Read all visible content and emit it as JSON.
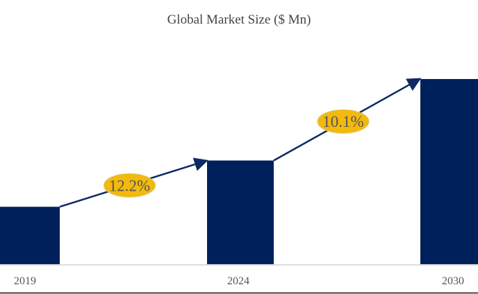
{
  "chart_data": {
    "type": "bar",
    "title": "Global Market Size ($ Mn)",
    "categories": [
      "2019",
      "2024",
      "2030"
    ],
    "values_relative_percent_of_max": [
      31,
      56,
      100
    ],
    "bar_color": "#00205b",
    "annotations": [
      {
        "from": "2019",
        "to": "2024",
        "label": "12.2%"
      },
      {
        "from": "2024",
        "to": "2030",
        "label": "10.1%"
      }
    ],
    "annotation_color": "#f2b90f",
    "arrow_color": "#0d2a63",
    "grid": false,
    "legend": "none",
    "y_axis_shown": false
  }
}
